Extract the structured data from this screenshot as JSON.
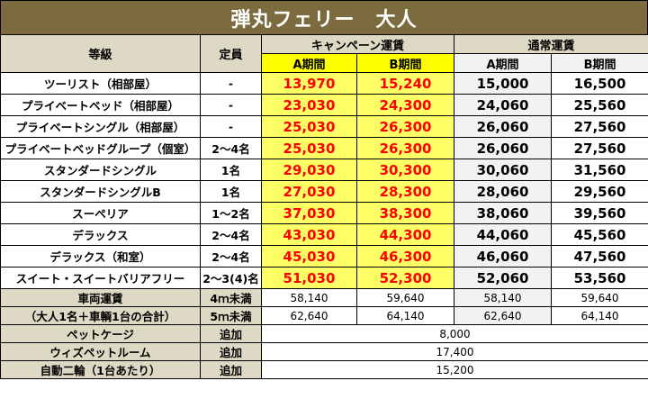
{
  "title": "弾丸フェリー　大人",
  "headers": {
    "grade": "等級",
    "capacity": "定員",
    "campaign": "キャンペーン運賃",
    "normal": "通常運賃",
    "period_a": "A期間",
    "period_b": "B期間"
  },
  "rooms": [
    {
      "name": "ツーリスト（相部屋）",
      "cap": "-",
      "ca": "13,970",
      "cb": "15,240",
      "na": "15,000",
      "nb": "16,500"
    },
    {
      "name": "プライベートベッド（相部屋）",
      "cap": "-",
      "ca": "23,030",
      "cb": "24,300",
      "na": "24,060",
      "nb": "25,560"
    },
    {
      "name": "プライベートシングル（相部屋）",
      "cap": "-",
      "ca": "25,030",
      "cb": "26,300",
      "na": "26,060",
      "nb": "27,560"
    },
    {
      "name": "プライベートベッドグループ（個室）",
      "cap": "2～4名",
      "ca": "25,030",
      "cb": "26,300",
      "na": "26,060",
      "nb": "27,560"
    },
    {
      "name": "スタンダードシングル",
      "cap": "1名",
      "ca": "29,030",
      "cb": "30,300",
      "na": "30,060",
      "nb": "31,560"
    },
    {
      "name": "スタンダードシングルB",
      "cap": "1名",
      "ca": "27,030",
      "cb": "28,300",
      "na": "28,060",
      "nb": "29,560"
    },
    {
      "name": "スーペリア",
      "cap": "1～2名",
      "ca": "37,030",
      "cb": "38,300",
      "na": "38,060",
      "nb": "39,560"
    },
    {
      "name": "デラックス",
      "cap": "2～4名",
      "ca": "43,030",
      "cb": "44,300",
      "na": "44,060",
      "nb": "45,560"
    },
    {
      "name": "デラックス（和室）",
      "cap": "2～4名",
      "ca": "45,030",
      "cb": "46,300",
      "na": "46,060",
      "nb": "47,560"
    },
    {
      "name": "スイート・スイートバリアフリー",
      "cap": "2～3(4)名",
      "ca": "51,030",
      "cb": "52,300",
      "na": "52,060",
      "nb": "53,560"
    }
  ],
  "vehicle": {
    "label1": "車両運賃",
    "label2": "（大人1名＋車輌1台の合計）",
    "rows": [
      {
        "size": "4ｍ未満",
        "ca": "58,140",
        "cb": "59,640",
        "na": "58,140",
        "nb": "59,640"
      },
      {
        "size": "5ｍ未満",
        "ca": "62,640",
        "cb": "64,140",
        "na": "62,640",
        "nb": "64,140"
      }
    ]
  },
  "extras": [
    {
      "name": "ペットケージ",
      "type": "追加",
      "price": "8,000"
    },
    {
      "name": "ウィズペットルーム",
      "type": "追加",
      "price": "17,400"
    },
    {
      "name": "自動二輪（1台あたり）",
      "type": "追加",
      "price": "15,200"
    }
  ],
  "colors": {
    "title_bg": "#7b6b3f",
    "header_bg": "#ddd9c4",
    "campaign_bg": "#ffff66",
    "campaign_text": "#ff0000"
  }
}
